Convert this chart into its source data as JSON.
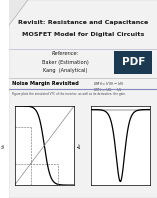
{
  "title_line1": "Revisit: Resistance and Capacitance",
  "title_line2": "MOSFET Model for Digital Circuits",
  "ref_label": "Reference:",
  "ref1": "Baker (Estimation)",
  "ref2": "Kang  (Analytical)",
  "section_title": "Noise Margin Revisited",
  "fig_caption": "Figure plots the simulated VTC of the inverter, as well as its derivative, the gain.",
  "pdf_bg": "#1b3a52",
  "pdf_text": "#ffffff",
  "slide_bg": "#f2f2f2",
  "title_color": "#1a1a1a",
  "section_color": "#000000",
  "body_bg": "#ffffff",
  "fold_color": "#d0d0d0",
  "fold_shadow": "#b0b0b0",
  "divider_color": "#8888bb",
  "eq_color": "#333333"
}
